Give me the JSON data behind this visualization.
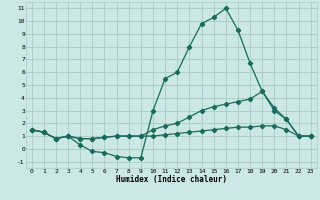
{
  "title": "",
  "xlabel": "Humidex (Indice chaleur)",
  "ylabel": "",
  "bg_color": "#cce8e4",
  "grid_color": "#aacfca",
  "line_color": "#1a6b5e",
  "xlim": [
    -0.5,
    23.5
  ],
  "ylim": [
    -1.5,
    11.5
  ],
  "xticks": [
    0,
    1,
    2,
    3,
    4,
    5,
    6,
    7,
    8,
    9,
    10,
    11,
    12,
    13,
    14,
    15,
    16,
    17,
    18,
    19,
    20,
    21,
    22,
    23
  ],
  "yticks": [
    -1,
    0,
    1,
    2,
    3,
    4,
    5,
    6,
    7,
    8,
    9,
    10,
    11
  ],
  "line1_x": [
    0,
    1,
    2,
    3,
    4,
    5,
    6,
    7,
    8,
    9,
    10,
    11,
    12,
    13,
    14,
    15,
    16,
    17,
    18,
    19,
    20,
    21,
    22,
    23
  ],
  "line1_y": [
    1.5,
    1.3,
    0.8,
    1.0,
    0.3,
    -0.2,
    -0.3,
    -0.6,
    -0.7,
    -0.7,
    3.0,
    5.5,
    6.0,
    8.0,
    9.8,
    10.3,
    11.0,
    9.3,
    6.7,
    4.5,
    3.0,
    2.3,
    1.0,
    1.0
  ],
  "line2_x": [
    0,
    1,
    2,
    3,
    4,
    5,
    6,
    7,
    8,
    9,
    10,
    11,
    12,
    13,
    14,
    15,
    16,
    17,
    18,
    19,
    20,
    21,
    22,
    23
  ],
  "line2_y": [
    1.5,
    1.3,
    0.8,
    1.0,
    0.8,
    0.8,
    0.9,
    1.0,
    1.0,
    1.0,
    1.5,
    1.8,
    2.0,
    2.5,
    3.0,
    3.3,
    3.5,
    3.7,
    3.9,
    4.5,
    3.2,
    2.3,
    1.0,
    1.0
  ],
  "line3_x": [
    0,
    1,
    2,
    3,
    4,
    5,
    6,
    7,
    8,
    9,
    10,
    11,
    12,
    13,
    14,
    15,
    16,
    17,
    18,
    19,
    20,
    21,
    22,
    23
  ],
  "line3_y": [
    1.5,
    1.3,
    0.8,
    1.0,
    0.8,
    0.8,
    0.9,
    1.0,
    1.0,
    1.0,
    1.0,
    1.1,
    1.2,
    1.3,
    1.4,
    1.5,
    1.6,
    1.7,
    1.7,
    1.8,
    1.8,
    1.5,
    1.0,
    1.0
  ]
}
